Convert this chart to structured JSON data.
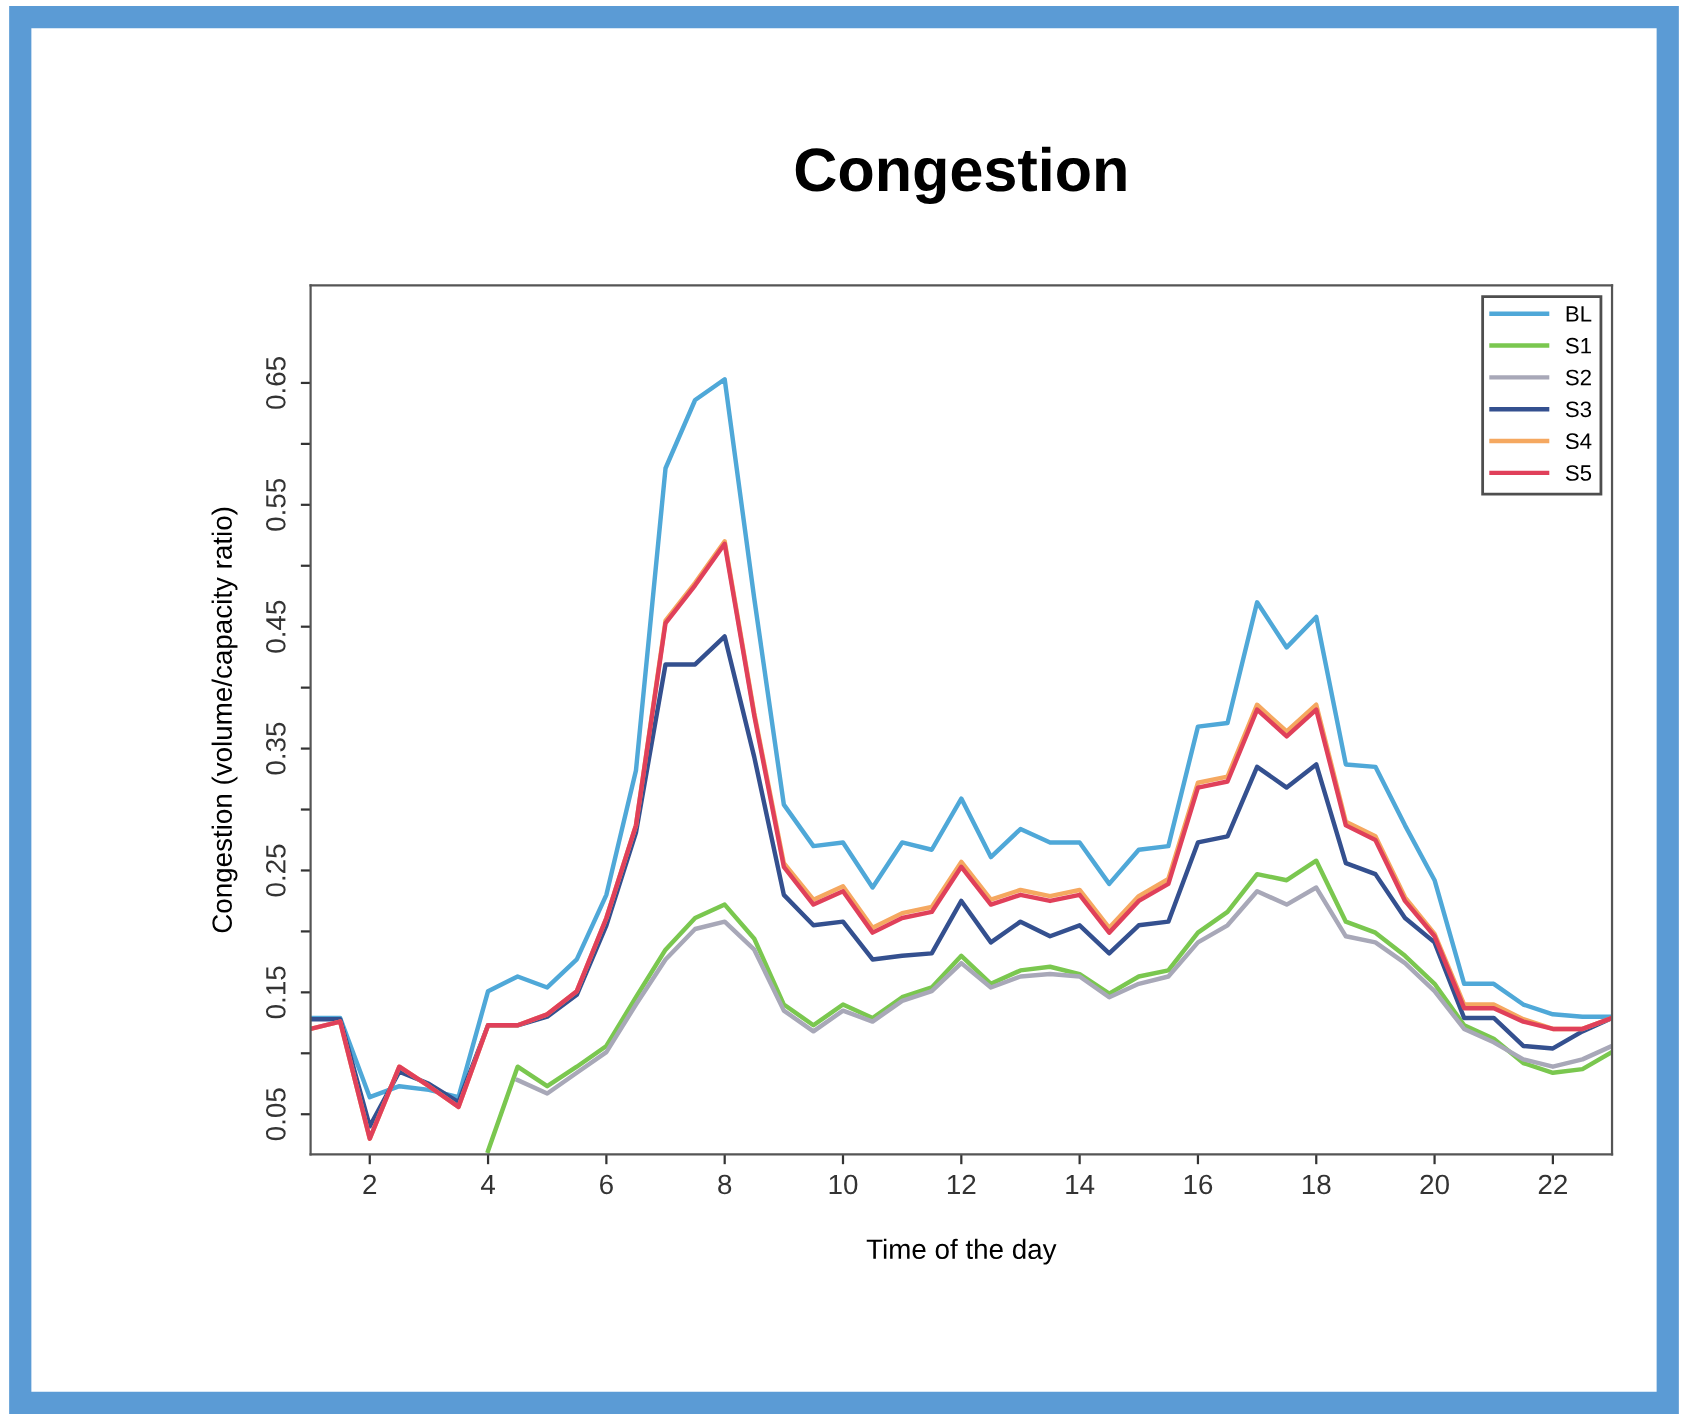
{
  "chart_data": {
    "type": "line",
    "title": "Congestion",
    "xlabel": "Time of the day",
    "ylabel": "Congestion (volume/capacity ratio)",
    "x": [
      1,
      1.5,
      2,
      2.5,
      3,
      3.5,
      4,
      4.5,
      5,
      5.5,
      6,
      6.5,
      7,
      7.5,
      8,
      8.5,
      9,
      9.5,
      10,
      10.5,
      11,
      11.5,
      12,
      12.5,
      13,
      13.5,
      14,
      14.5,
      15,
      15.5,
      16,
      16.5,
      17,
      17.5,
      18,
      18.5,
      19,
      19.5,
      20,
      20.5,
      21,
      21.5,
      22,
      22.5,
      23
    ],
    "xlim": [
      1,
      23
    ],
    "xticks": [
      2,
      4,
      6,
      8,
      10,
      12,
      14,
      16,
      18,
      20,
      22
    ],
    "ylim": [
      0.017,
      0.73
    ],
    "yticks": [
      0.05,
      {
        "value": 0.1,
        "label": null
      },
      0.15,
      {
        "value": 0.2,
        "label": null
      },
      0.25,
      {
        "value": 0.3,
        "label": null
      },
      0.35,
      {
        "value": 0.4,
        "label": null
      },
      0.45,
      {
        "value": 0.5,
        "label": null
      },
      0.55,
      {
        "value": 0.6,
        "label": null
      },
      0.65
    ],
    "grid": false,
    "legend": "top right",
    "marker": "none",
    "line_style": "solid",
    "series": [
      {
        "name": "BL",
        "color": "#4fa8d8",
        "values": [
          0.129,
          0.129,
          0.064,
          0.073,
          0.07,
          0.064,
          0.151,
          0.163,
          0.154,
          0.177,
          0.23,
          0.332,
          0.58,
          0.636,
          0.653,
          0.473,
          0.304,
          0.27,
          0.273,
          0.236,
          0.273,
          0.267,
          0.309,
          0.261,
          0.284,
          0.273,
          0.273,
          0.239,
          0.267,
          0.27,
          0.368,
          0.371,
          0.47,
          0.433,
          0.458,
          0.337,
          0.335,
          0.287,
          0.242,
          0.157,
          0.157,
          0.14,
          0.132,
          0.13,
          0.13
        ]
      },
      {
        "name": "S1",
        "color": "#7ac74f",
        "values": [
          null,
          null,
          null,
          null,
          null,
          null,
          0.02,
          0.089,
          0.073,
          0.089,
          0.106,
          0.146,
          0.185,
          0.211,
          0.222,
          0.194,
          0.14,
          0.123,
          0.14,
          0.129,
          0.146,
          0.154,
          0.18,
          0.157,
          0.168,
          0.171,
          0.165,
          0.149,
          0.163,
          0.168,
          0.199,
          0.216,
          0.247,
          0.242,
          0.258,
          0.208,
          0.199,
          0.18,
          0.157,
          0.123,
          0.112,
          0.092,
          0.084,
          0.087,
          0.101
        ]
      },
      {
        "name": "S2",
        "color": "#a8a8b8",
        "values": [
          null,
          null,
          null,
          null,
          null,
          null,
          null,
          0.078,
          0.067,
          0.084,
          0.101,
          0.14,
          0.177,
          0.202,
          0.208,
          0.185,
          0.135,
          0.118,
          0.135,
          0.126,
          0.143,
          0.151,
          0.174,
          0.154,
          0.163,
          0.165,
          0.163,
          0.146,
          0.157,
          0.163,
          0.191,
          0.205,
          0.233,
          0.222,
          0.236,
          0.196,
          0.191,
          0.174,
          0.151,
          0.12,
          0.109,
          0.095,
          0.089,
          0.095,
          0.106
        ]
      },
      {
        "name": "S3",
        "color": "#34508f",
        "values": [
          0.128,
          0.128,
          0.04,
          0.085,
          0.075,
          0.06,
          0.123,
          0.123,
          0.13,
          0.148,
          0.205,
          0.281,
          0.419,
          0.419,
          0.442,
          0.343,
          0.23,
          0.205,
          0.208,
          0.177,
          0.18,
          0.182,
          0.225,
          0.191,
          0.208,
          0.196,
          0.205,
          0.182,
          0.205,
          0.208,
          0.273,
          0.278,
          0.335,
          0.318,
          0.337,
          0.256,
          0.247,
          0.211,
          0.191,
          0.129,
          0.129,
          0.106,
          0.104,
          0.118,
          0.129
        ]
      },
      {
        "name": "S4",
        "color": "#f5a860",
        "values": [
          0.12,
          0.126,
          0.03,
          0.089,
          0.073,
          0.056,
          0.123,
          0.123,
          0.132,
          0.151,
          0.211,
          0.287,
          0.455,
          0.486,
          0.52,
          0.379,
          0.256,
          0.226,
          0.237,
          0.203,
          0.215,
          0.22,
          0.257,
          0.226,
          0.234,
          0.229,
          0.234,
          0.203,
          0.229,
          0.243,
          0.322,
          0.327,
          0.386,
          0.364,
          0.386,
          0.29,
          0.278,
          0.228,
          0.198,
          0.14,
          0.14,
          0.128,
          0.12,
          0.12,
          0.129
        ]
      },
      {
        "name": "S5",
        "color": "#e0405a",
        "values": [
          0.12,
          0.126,
          0.03,
          0.089,
          0.073,
          0.056,
          0.123,
          0.123,
          0.132,
          0.151,
          0.211,
          0.287,
          0.453,
          0.484,
          0.518,
          0.377,
          0.253,
          0.222,
          0.233,
          0.199,
          0.211,
          0.216,
          0.253,
          0.222,
          0.23,
          0.225,
          0.23,
          0.199,
          0.225,
          0.239,
          0.318,
          0.323,
          0.382,
          0.36,
          0.382,
          0.287,
          0.275,
          0.225,
          0.196,
          0.137,
          0.137,
          0.126,
          0.12,
          0.12,
          0.129
        ]
      }
    ]
  }
}
